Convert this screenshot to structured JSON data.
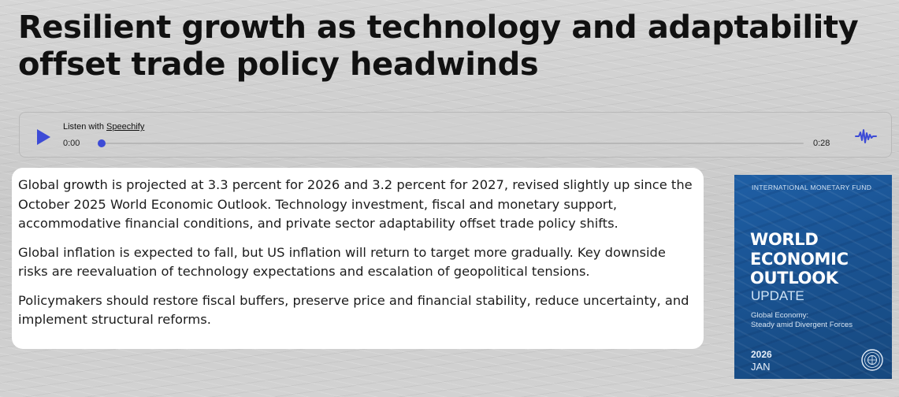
{
  "headline": "Resilient growth as technology and adaptability offset trade policy headwinds",
  "player": {
    "listen_prefix": "Listen with ",
    "listen_link": "Speechify",
    "current_time": "0:00",
    "duration": "0:28",
    "progress": 0,
    "play_icon": "play-icon",
    "brand_icon": "waveform-icon",
    "accent_color": "#3d4bd6"
  },
  "summary": {
    "paragraphs": [
      "Global growth is projected at 3.3 percent for 2026 and 3.2 percent for 2027, revised slightly up since the October 2025 World Economic Outlook. Technology investment, fiscal and monetary support, accommodative financial conditions, and private sector adaptability offset trade policy shifts.",
      "Global inflation is expected to fall, but US inflation will return to target more gradually. Key downside risks are reevaluation of technology expectations and escalation of geopolitical tensions.",
      "Policymakers should restore fiscal buffers, preserve price and financial stability, reduce uncertainty, and implement structural reforms."
    ]
  },
  "cover": {
    "org": "INTERNATIONAL MONETARY FUND",
    "title_lines": [
      "WORLD",
      "ECONOMIC",
      "OUTLOOK"
    ],
    "update": "UPDATE",
    "subtitle_lines": [
      "Global Economy:",
      "Steady amid Divergent Forces"
    ],
    "year": "2026",
    "month": "JAN",
    "seal_icon": "imf-seal-icon",
    "color": "#1d5a9e"
  }
}
